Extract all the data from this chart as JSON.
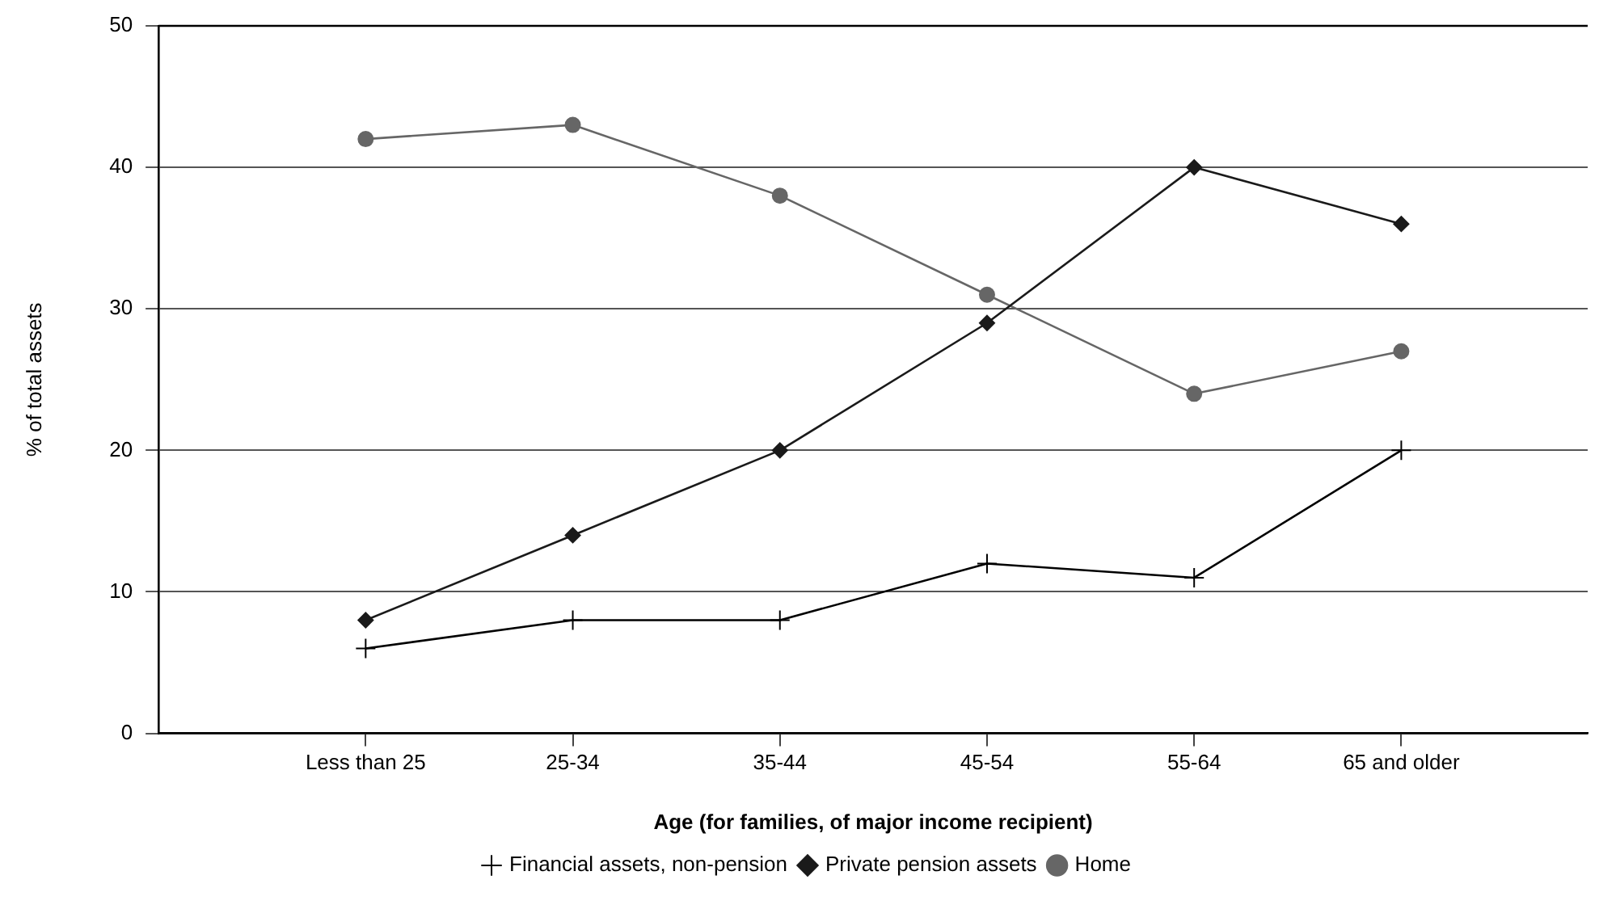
{
  "chart_data": {
    "type": "line",
    "xlabel": "Age (for families, of major income recipient)",
    "ylabel": "% of total assets",
    "categories": [
      "Less than 25",
      "25-34",
      "35-44",
      "45-54",
      "55-64",
      "65 and older"
    ],
    "series": [
      {
        "name": "Financial assets, non-pension",
        "color": "#000000",
        "marker": "cross",
        "values": [
          6,
          8,
          8,
          12,
          11,
          20
        ]
      },
      {
        "name": "Private pension assets",
        "color": "#1a1a1a",
        "marker": "diamond",
        "values": [
          8,
          14,
          20,
          29,
          40,
          36
        ]
      },
      {
        "name": "Home",
        "color": "#666666",
        "marker": "circle",
        "values": [
          42,
          43,
          38,
          31,
          24,
          27
        ]
      }
    ],
    "ylim": [
      0,
      50
    ],
    "yticks": [
      0,
      10,
      20,
      30,
      40,
      50
    ],
    "grid": "y",
    "legend": "bottom",
    "line_style": "solid"
  }
}
